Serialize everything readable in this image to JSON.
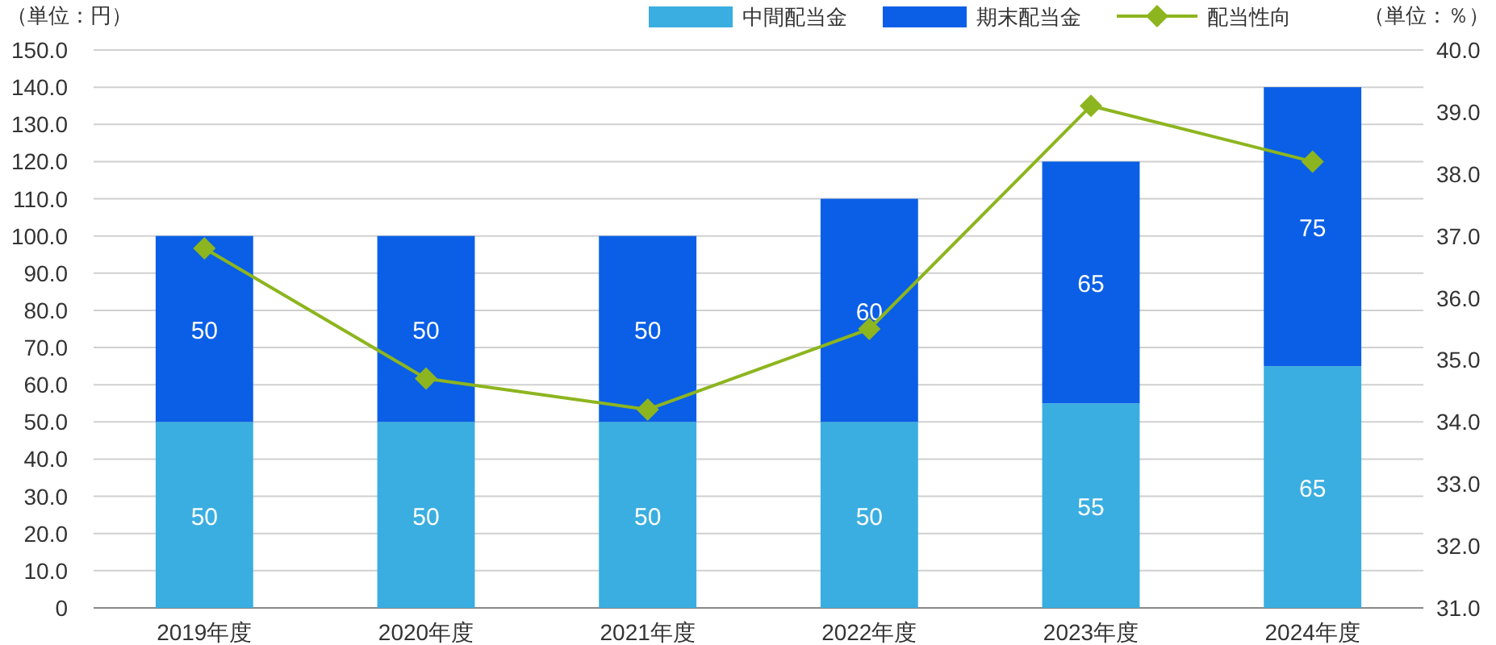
{
  "chart_data": {
    "type": "bar",
    "stacked": true,
    "ylabel": "（単位：円）",
    "y2label": "（単位：％）",
    "categories": [
      "2019年度",
      "2020年度",
      "2021年度",
      "2022年度",
      "2023年度",
      "2024年度"
    ],
    "series": [
      {
        "name": "中間配当金",
        "color": "#3aaee0",
        "values": [
          50,
          50,
          50,
          50,
          55,
          65
        ],
        "value_labels": [
          "50",
          "50",
          "50",
          "50",
          "55",
          "65"
        ]
      },
      {
        "name": "期末配当金",
        "color": "#0a5fe6",
        "values": [
          50,
          50,
          50,
          60,
          65,
          75
        ],
        "value_labels": [
          "50",
          "50",
          "50",
          "60",
          "65",
          "75"
        ]
      },
      {
        "name": "配当性向",
        "type": "line",
        "axis": "y2",
        "color": "#8db51f",
        "marker": "diamond",
        "values": [
          36.8,
          34.7,
          34.2,
          35.5,
          39.1,
          38.2
        ]
      }
    ],
    "ylim": [
      0,
      150
    ],
    "yticks": [
      0,
      {
        "value": 10,
        "label": "10.0"
      },
      {
        "value": 20,
        "label": "20.0"
      },
      {
        "value": 30,
        "label": "30.0"
      },
      {
        "value": 40,
        "label": "40.0"
      },
      {
        "value": 50,
        "label": "50.0"
      },
      {
        "value": 60,
        "label": "60.0"
      },
      {
        "value": 70,
        "label": "70.0"
      },
      {
        "value": 80,
        "label": "80.0"
      },
      {
        "value": 90,
        "label": "90.0"
      },
      {
        "value": 100,
        "label": "100.0"
      },
      {
        "value": 110,
        "label": "110.0"
      },
      {
        "value": 120,
        "label": "120.0"
      },
      {
        "value": 130,
        "label": "130.0"
      },
      {
        "value": 140,
        "label": "140.0"
      },
      {
        "value": 150,
        "label": "150.0"
      }
    ],
    "y2lim": [
      31,
      40
    ],
    "y2ticks": [
      {
        "value": 31,
        "label": "31.0"
      },
      {
        "value": 32,
        "label": "32.0"
      },
      {
        "value": 33,
        "label": "33.0"
      },
      {
        "value": 34,
        "label": "34.0"
      },
      {
        "value": 35,
        "label": "35.0"
      },
      {
        "value": 36,
        "label": "36.0"
      },
      {
        "value": 37,
        "label": "37.0"
      },
      {
        "value": 38,
        "label": "38.0"
      },
      {
        "value": 39,
        "label": "39.0"
      },
      {
        "value": 40,
        "label": "40.0"
      }
    ],
    "grid": "y",
    "legend": "top right"
  }
}
